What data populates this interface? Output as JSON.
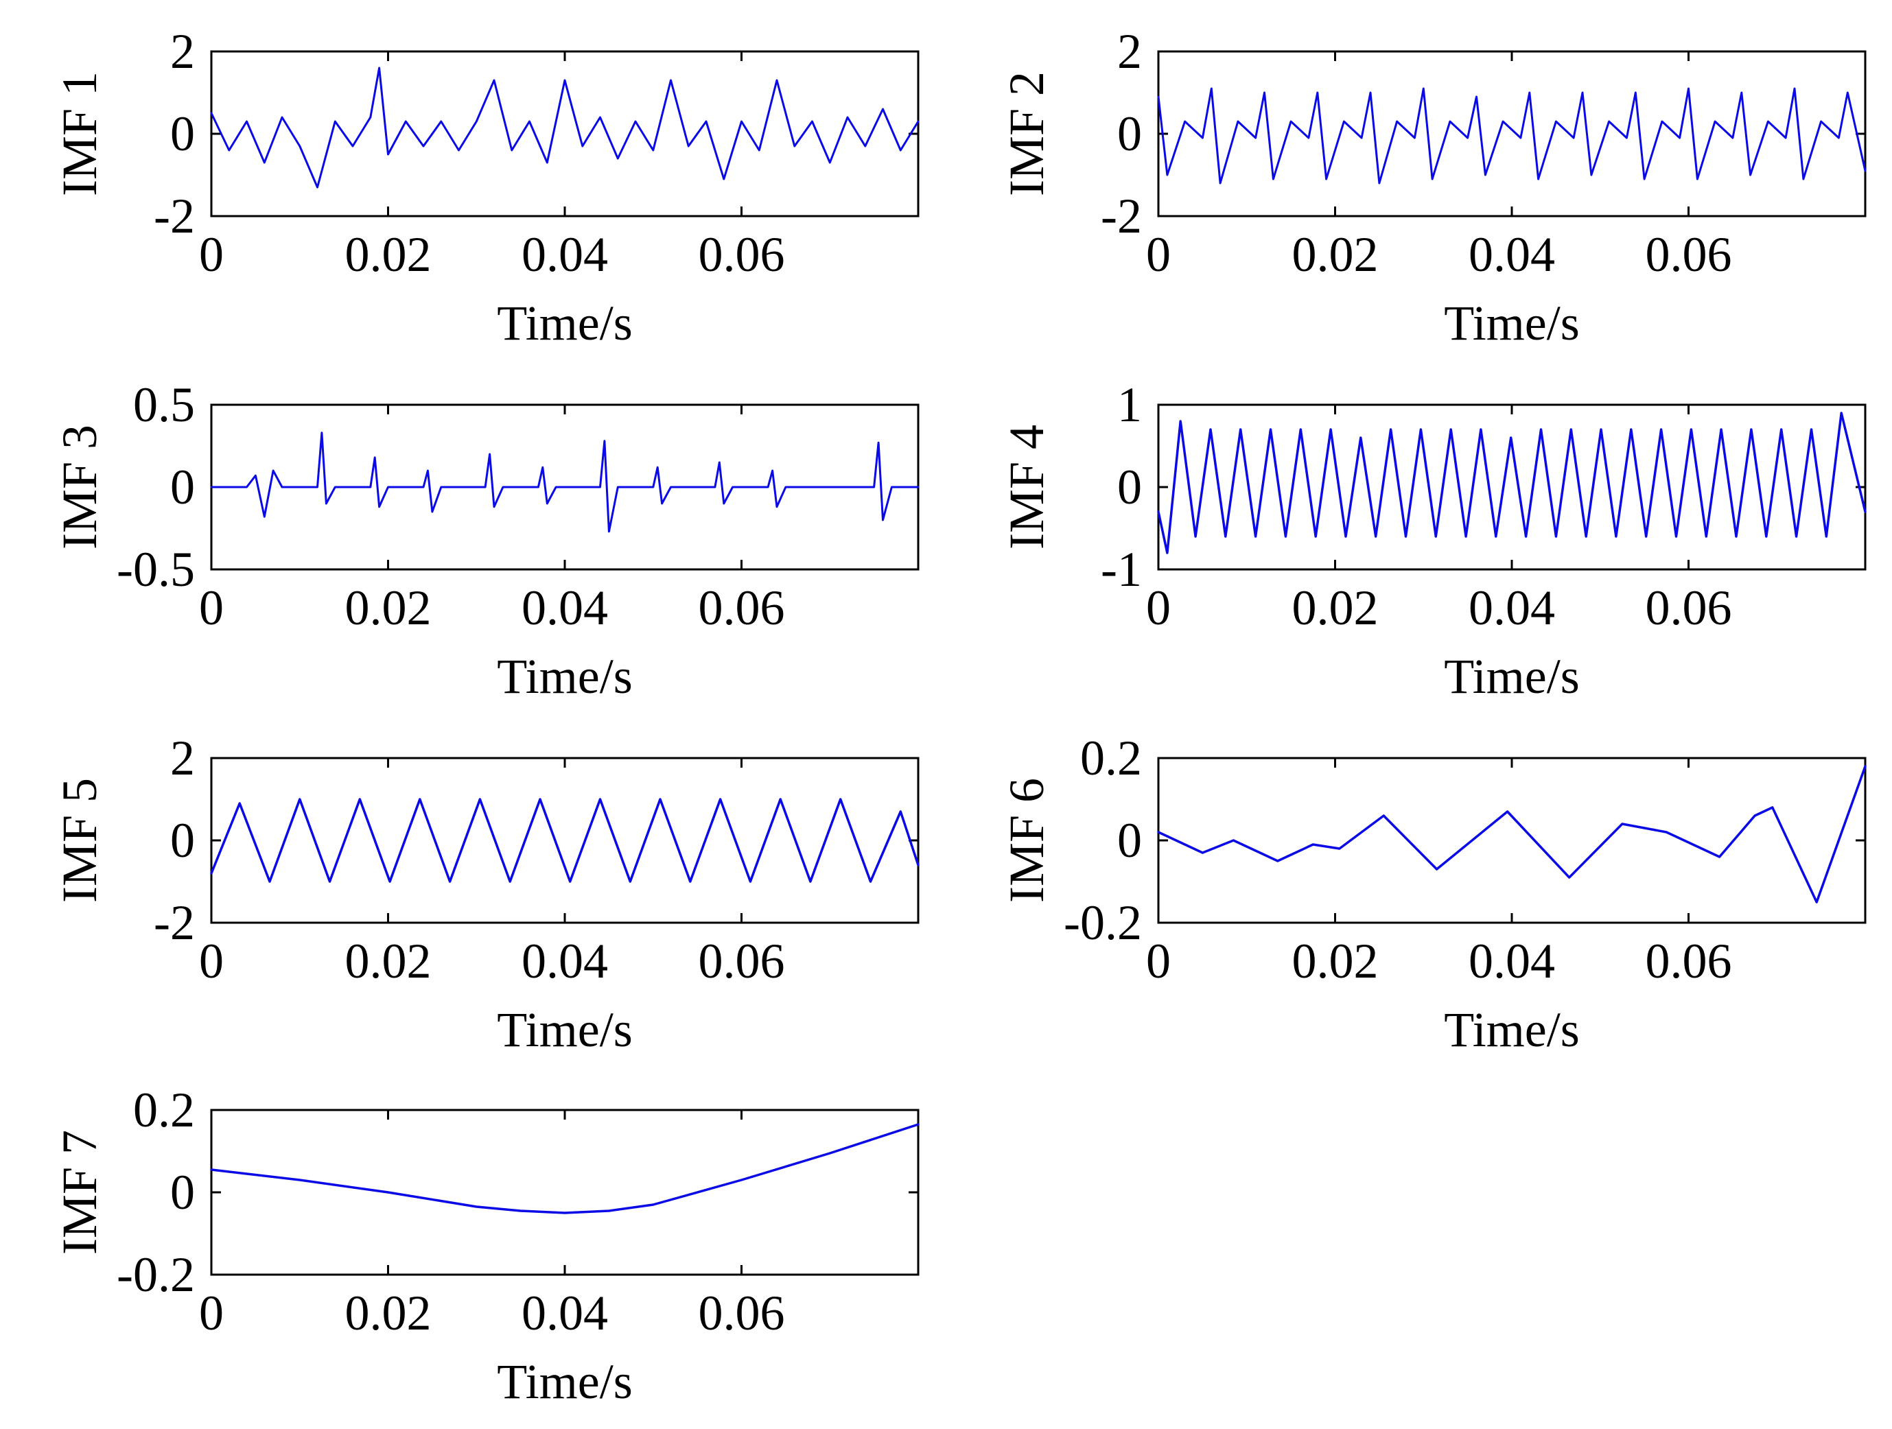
{
  "colors": {
    "series": "#0a0ae6",
    "axis": "#000000",
    "background": "#ffffff"
  },
  "chart_data": [
    {
      "type": "line",
      "ylabel": "IMF 1",
      "xlabel": "Time/s",
      "xlim": [
        0,
        0.08
      ],
      "ylim": [
        -2,
        2
      ],
      "xticks": [
        "0",
        "0.02",
        "0.04",
        "0.06"
      ],
      "yticks": [
        "2",
        "0",
        "-2"
      ],
      "series": [
        {
          "x": [
            0,
            0.002,
            0.004,
            0.006,
            0.008,
            0.01,
            0.012,
            0.014,
            0.016,
            0.018,
            0.019,
            0.02,
            0.022,
            0.024,
            0.026,
            0.028,
            0.03,
            0.032,
            0.034,
            0.036,
            0.038,
            0.04,
            0.042,
            0.044,
            0.046,
            0.048,
            0.05,
            0.052,
            0.054,
            0.056,
            0.058,
            0.06,
            0.062,
            0.064,
            0.066,
            0.068,
            0.07,
            0.072,
            0.074,
            0.076,
            0.078,
            0.08
          ],
          "values": [
            0.5,
            -0.4,
            0.3,
            -0.7,
            0.4,
            -0.3,
            -1.3,
            0.3,
            -0.3,
            0.4,
            1.6,
            -0.5,
            0.3,
            -0.3,
            0.3,
            -0.4,
            0.3,
            1.3,
            -0.4,
            0.3,
            -0.7,
            1.3,
            -0.3,
            0.4,
            -0.6,
            0.3,
            -0.4,
            1.3,
            -0.3,
            0.3,
            -1.1,
            0.3,
            -0.4,
            1.3,
            -0.3,
            0.3,
            -0.7,
            0.4,
            -0.3,
            0.6,
            -0.4,
            0.3
          ]
        }
      ]
    },
    {
      "type": "line",
      "ylabel": "IMF 2",
      "xlabel": "Time/s",
      "xlim": [
        0,
        0.08
      ],
      "ylim": [
        -2,
        2
      ],
      "xticks": [
        "0",
        "0.02",
        "0.04",
        "0.06"
      ],
      "yticks": [
        "2",
        "0",
        "-2"
      ],
      "series": [
        {
          "x": [
            0,
            0.001,
            0.003,
            0.005,
            0.006,
            0.007,
            0.009,
            0.011,
            0.012,
            0.013,
            0.015,
            0.017,
            0.018,
            0.019,
            0.021,
            0.023,
            0.024,
            0.025,
            0.027,
            0.029,
            0.03,
            0.031,
            0.033,
            0.035,
            0.036,
            0.037,
            0.039,
            0.041,
            0.042,
            0.043,
            0.045,
            0.047,
            0.048,
            0.049,
            0.051,
            0.053,
            0.054,
            0.055,
            0.057,
            0.059,
            0.06,
            0.061,
            0.063,
            0.065,
            0.066,
            0.067,
            0.069,
            0.071,
            0.072,
            0.073,
            0.075,
            0.077,
            0.078,
            0.08
          ],
          "values": [
            0.9,
            -1.0,
            0.3,
            -0.1,
            1.1,
            -1.2,
            0.3,
            -0.1,
            1.0,
            -1.1,
            0.3,
            -0.1,
            1.0,
            -1.1,
            0.3,
            -0.1,
            1.0,
            -1.2,
            0.3,
            -0.1,
            1.1,
            -1.1,
            0.3,
            -0.1,
            0.9,
            -1.0,
            0.3,
            -0.1,
            1.0,
            -1.1,
            0.3,
            -0.1,
            1.0,
            -1.0,
            0.3,
            -0.1,
            1.0,
            -1.1,
            0.3,
            -0.1,
            1.1,
            -1.1,
            0.3,
            -0.1,
            1.0,
            -1.0,
            0.3,
            -0.1,
            1.1,
            -1.1,
            0.3,
            -0.1,
            1.0,
            -0.9
          ]
        }
      ]
    },
    {
      "type": "line",
      "ylabel": "IMF 3",
      "xlabel": "Time/s",
      "xlim": [
        0,
        0.08
      ],
      "ylim": [
        -0.5,
        0.5
      ],
      "xticks": [
        "0",
        "0.02",
        "0.04",
        "0.06"
      ],
      "yticks": [
        "0.5",
        "0",
        "-0.5"
      ],
      "series": [
        {
          "x": [
            0,
            0.004,
            0.005,
            0.006,
            0.007,
            0.008,
            0.012,
            0.0125,
            0.013,
            0.014,
            0.018,
            0.0185,
            0.019,
            0.02,
            0.024,
            0.0245,
            0.025,
            0.026,
            0.031,
            0.0315,
            0.032,
            0.033,
            0.037,
            0.0375,
            0.038,
            0.039,
            0.044,
            0.0445,
            0.045,
            0.046,
            0.05,
            0.0505,
            0.051,
            0.052,
            0.057,
            0.0575,
            0.058,
            0.059,
            0.063,
            0.0635,
            0.064,
            0.065,
            0.075,
            0.0755,
            0.076,
            0.077,
            0.08
          ],
          "values": [
            0,
            0,
            0.07,
            -0.18,
            0.1,
            0,
            0,
            0.33,
            -0.1,
            0,
            0,
            0.18,
            -0.12,
            0,
            0,
            0.1,
            -0.15,
            0,
            0,
            0.2,
            -0.12,
            0,
            0,
            0.12,
            -0.1,
            0,
            0,
            0.28,
            -0.27,
            0,
            0,
            0.12,
            -0.1,
            0,
            0,
            0.15,
            -0.1,
            0,
            0,
            0.1,
            -0.12,
            0,
            0,
            0.27,
            -0.2,
            0,
            0
          ]
        }
      ]
    },
    {
      "type": "line",
      "ylabel": "IMF 4",
      "xlabel": "Time/s",
      "xlim": [
        0,
        0.08
      ],
      "ylim": [
        -1,
        1
      ],
      "xticks": [
        "0",
        "0.02",
        "0.04",
        "0.06"
      ],
      "yticks": [
        "1",
        "0",
        "-1"
      ],
      "series": [
        {
          "x": [
            0,
            0.001,
            0.0025,
            0.0042,
            0.0059,
            0.0076,
            0.0093,
            0.011,
            0.0127,
            0.0144,
            0.0161,
            0.0178,
            0.0195,
            0.0212,
            0.0229,
            0.0246,
            0.0263,
            0.028,
            0.0297,
            0.0314,
            0.0331,
            0.0348,
            0.0365,
            0.0382,
            0.0399,
            0.0416,
            0.0433,
            0.045,
            0.0467,
            0.0484,
            0.0501,
            0.0518,
            0.0535,
            0.0552,
            0.0569,
            0.0586,
            0.0603,
            0.062,
            0.0637,
            0.0654,
            0.0671,
            0.0688,
            0.0705,
            0.0722,
            0.0739,
            0.0756,
            0.0773,
            0.08
          ],
          "values": [
            -0.3,
            -0.8,
            0.8,
            -0.6,
            0.7,
            -0.6,
            0.7,
            -0.6,
            0.7,
            -0.6,
            0.7,
            -0.6,
            0.7,
            -0.6,
            0.6,
            -0.6,
            0.7,
            -0.6,
            0.7,
            -0.6,
            0.7,
            -0.6,
            0.7,
            -0.6,
            0.6,
            -0.6,
            0.7,
            -0.6,
            0.7,
            -0.6,
            0.7,
            -0.6,
            0.7,
            -0.6,
            0.7,
            -0.6,
            0.7,
            -0.6,
            0.7,
            -0.6,
            0.7,
            -0.6,
            0.7,
            -0.6,
            0.7,
            -0.6,
            0.9,
            -0.3
          ]
        }
      ]
    },
    {
      "type": "line",
      "ylabel": "IMF 5",
      "xlabel": "Time/s",
      "xlim": [
        0,
        0.08
      ],
      "ylim": [
        -2,
        2
      ],
      "xticks": [
        "0",
        "0.02",
        "0.04",
        "0.06"
      ],
      "yticks": [
        "2",
        "0",
        "-2"
      ],
      "series": [
        {
          "x": [
            0,
            0.0032,
            0.0066,
            0.01,
            0.0134,
            0.0168,
            0.0202,
            0.0236,
            0.027,
            0.0304,
            0.0338,
            0.0372,
            0.0406,
            0.044,
            0.0474,
            0.0508,
            0.0542,
            0.0576,
            0.061,
            0.0644,
            0.0678,
            0.0712,
            0.0746,
            0.078,
            0.08
          ],
          "values": [
            -0.8,
            0.9,
            -1.0,
            1.0,
            -1.0,
            1.0,
            -1.0,
            1.0,
            -1.0,
            1.0,
            -1.0,
            1.0,
            -1.0,
            1.0,
            -1.0,
            1.0,
            -1.0,
            1.0,
            -1.0,
            1.0,
            -1.0,
            1.0,
            -1.0,
            0.7,
            -0.6
          ]
        }
      ]
    },
    {
      "type": "line",
      "ylabel": "IMF 6",
      "xlabel": "Time/s",
      "xlim": [
        0,
        0.08
      ],
      "ylim": [
        -0.2,
        0.2
      ],
      "xticks": [
        "0",
        "0.02",
        "0.04",
        "0.06"
      ],
      "yticks": [
        "0.2",
        "0",
        "-0.2"
      ],
      "series": [
        {
          "x": [
            0,
            0.005,
            0.0085,
            0.0135,
            0.0175,
            0.0205,
            0.0255,
            0.0315,
            0.0395,
            0.0465,
            0.0525,
            0.0575,
            0.0635,
            0.0675,
            0.0695,
            0.0745,
            0.08
          ],
          "values": [
            0.02,
            -0.03,
            0.0,
            -0.05,
            -0.01,
            -0.02,
            0.06,
            -0.07,
            0.07,
            -0.09,
            0.04,
            0.02,
            -0.04,
            0.06,
            0.08,
            -0.15,
            0.18
          ]
        }
      ]
    },
    {
      "type": "line",
      "ylabel": "IMF 7",
      "xlabel": "Time/s",
      "xlim": [
        0,
        0.08
      ],
      "ylim": [
        -0.2,
        0.2
      ],
      "xticks": [
        "0",
        "0.02",
        "0.04",
        "0.06"
      ],
      "yticks": [
        "0.2",
        "0",
        "-0.2"
      ],
      "series": [
        {
          "x": [
            0,
            0.01,
            0.02,
            0.03,
            0.035,
            0.04,
            0.045,
            0.05,
            0.06,
            0.07,
            0.08
          ],
          "values": [
            0.055,
            0.03,
            0.0,
            -0.035,
            -0.045,
            -0.05,
            -0.045,
            -0.03,
            0.03,
            0.095,
            0.165
          ]
        }
      ]
    }
  ]
}
